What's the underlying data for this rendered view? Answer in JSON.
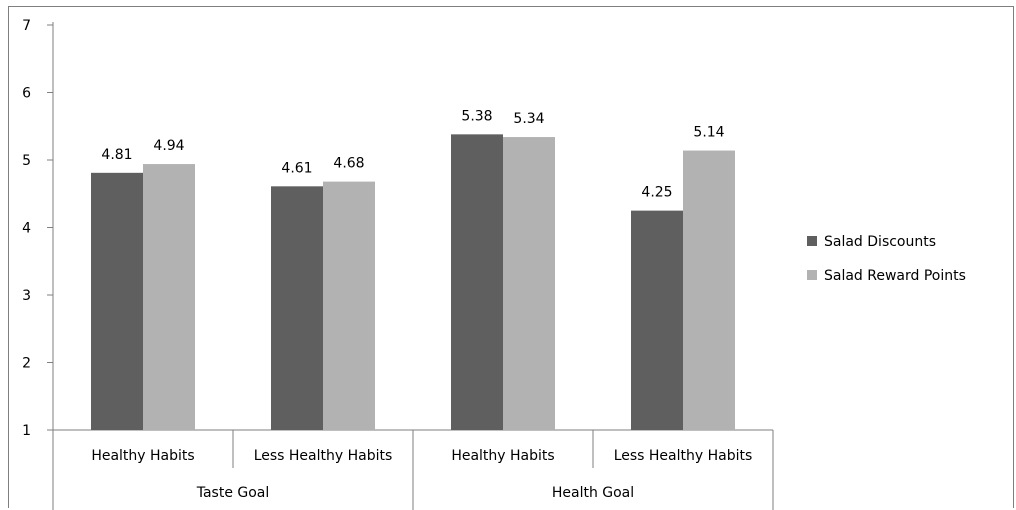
{
  "chart_data": {
    "type": "bar",
    "title": "",
    "xlabel": "",
    "ylabel": "",
    "ylim": [
      1,
      7
    ],
    "yticks": [
      1,
      2,
      3,
      4,
      5,
      6,
      7
    ],
    "grid": false,
    "legend_position": "right",
    "groups": [
      {
        "label": "Taste Goal",
        "categories": [
          "Healthy Habits",
          "Less Healthy Habits"
        ]
      },
      {
        "label": "Health Goal",
        "categories": [
          "Healthy Habits",
          "Less Healthy Habits"
        ]
      }
    ],
    "categories": [
      "Healthy Habits",
      "Less Healthy Habits",
      "Healthy Habits",
      "Less Healthy Habits"
    ],
    "series": [
      {
        "name": "Salad Discounts",
        "color": "#5f5f5f",
        "values": [
          4.81,
          4.61,
          5.38,
          4.25
        ],
        "labels": [
          "4.81",
          "4.61",
          "5.38",
          "4.25"
        ]
      },
      {
        "name": "Salad Reward Points",
        "color": "#b2b2b2",
        "values": [
          4.94,
          4.68,
          5.34,
          5.14
        ],
        "labels": [
          "4.94",
          "4.68",
          "5.34",
          "5.14"
        ]
      }
    ]
  }
}
